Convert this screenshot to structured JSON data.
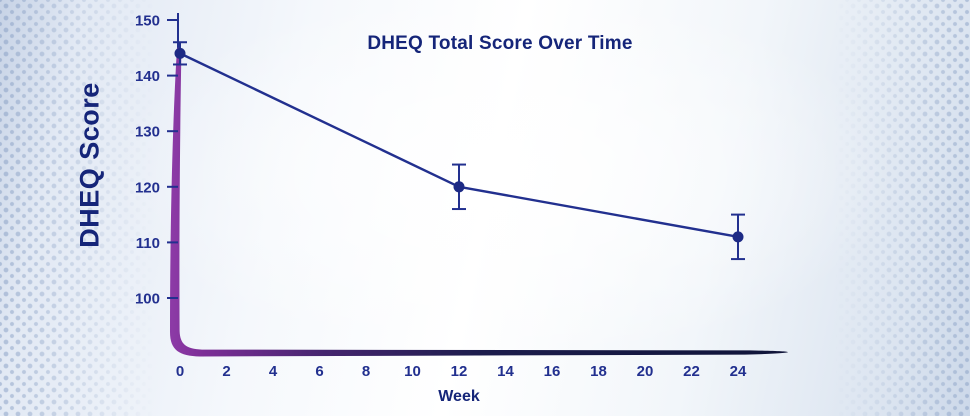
{
  "chart_data": {
    "type": "line",
    "title": "DHEQ Total Score Over Time",
    "xlabel": "Week",
    "ylabel": "DHEQ Score",
    "x": [
      0,
      12,
      24
    ],
    "y": [
      144,
      120,
      111
    ],
    "yerr": [
      2,
      4,
      4
    ],
    "xticks": [
      0,
      2,
      4,
      6,
      8,
      10,
      12,
      14,
      16,
      18,
      20,
      22,
      24
    ],
    "yticks": [
      100,
      110,
      120,
      130,
      140,
      150
    ],
    "xlim": [
      0,
      26
    ],
    "ylim": [
      100,
      150
    ],
    "grid": false,
    "legend": "none",
    "marker": "circle",
    "error_bars": true
  },
  "palette": {
    "line_navy": "#22308f",
    "marker_navy": "#1d2a85",
    "text_navy": "#152579",
    "tick_navy": "#22308f",
    "swoosh_stops": [
      "#8e3ca8",
      "#7e2f98",
      "#45256f",
      "#1d1d4d",
      "#0f1438"
    ],
    "background_edge_blue": "#cdd8e9",
    "dot_blue": "#7d96be"
  }
}
